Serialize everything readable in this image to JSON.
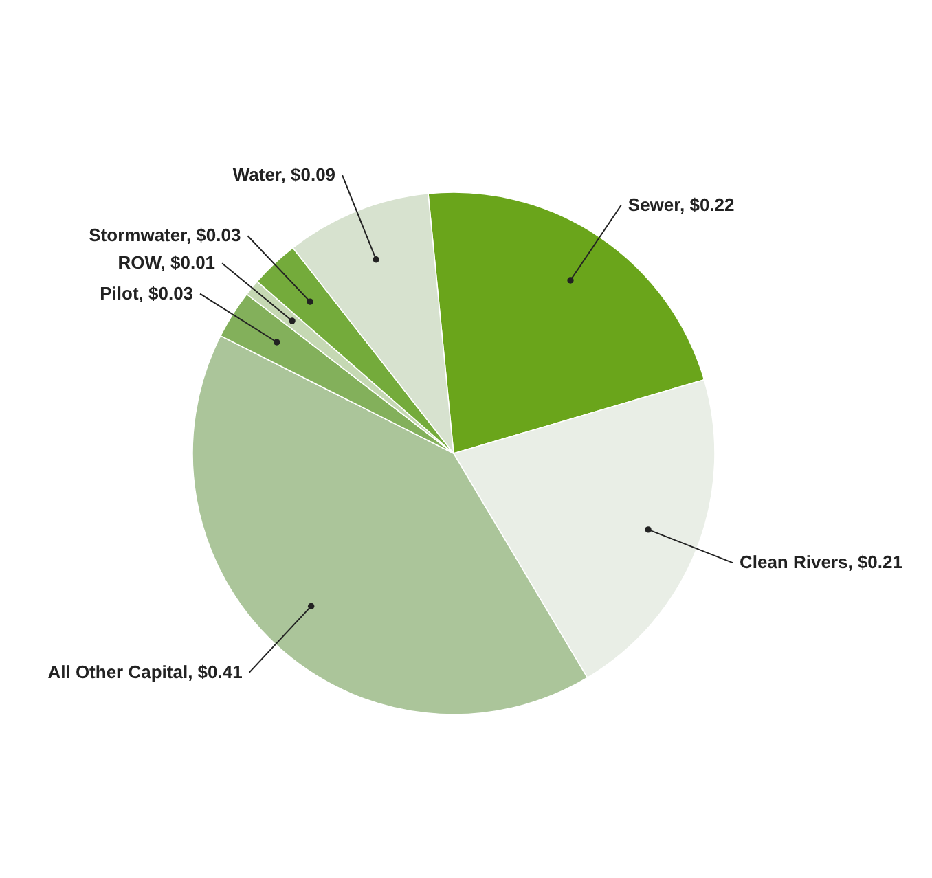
{
  "chart_data": {
    "type": "pie",
    "categories": [
      "Sewer",
      "Clean Rivers",
      "All Other Capital",
      "Pilot",
      "ROW",
      "Stormwater",
      "Water"
    ],
    "values": [
      0.22,
      0.21,
      0.41,
      0.03,
      0.01,
      0.03,
      0.09
    ],
    "value_labels": [
      "$0.22",
      "$0.21",
      "$0.41",
      "$0.03",
      "$0.01",
      "$0.03",
      "$0.09"
    ],
    "colors": [
      "#6aa51b",
      "#e9eee6",
      "#abc59a",
      "#83b05b",
      "#c5d8b3",
      "#74ab3b",
      "#d7e2cf"
    ]
  }
}
